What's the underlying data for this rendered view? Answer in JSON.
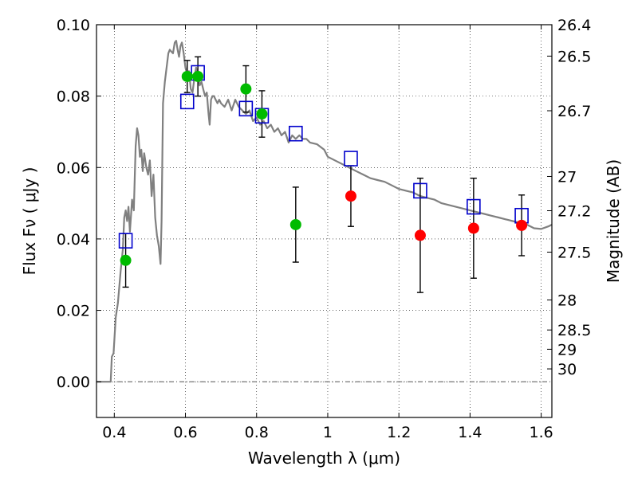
{
  "chart_data": {
    "type": "scatter",
    "xlabel": "Wavelength  λ (μm)",
    "ylabel": "Flux  Fν  ( μJy )",
    "ylabel_right": "Magnitude (AB)",
    "xlim": [
      0.35,
      1.63
    ],
    "ylim": [
      -0.01,
      0.1
    ],
    "grid": true,
    "x_ticks": [
      0.4,
      0.6,
      0.8,
      1.0,
      1.2,
      1.4,
      1.6
    ],
    "x_tick_labels": [
      "0.4",
      "0.6",
      "0.8",
      "1",
      "1.2",
      "1.4",
      "1.6"
    ],
    "y_ticks": [
      0.0,
      0.02,
      0.04,
      0.06,
      0.08,
      0.1
    ],
    "y_tick_labels": [
      "0.00",
      "0.02",
      "0.04",
      "0.06",
      "0.08",
      "0.10"
    ],
    "right_ticks": [
      {
        "label": "26.4",
        "flux": 0.1
      },
      {
        "label": "26.5",
        "flux": 0.0912
      },
      {
        "label": "26.7",
        "flux": 0.0759
      },
      {
        "label": "27",
        "flux": 0.0575
      },
      {
        "label": "27.2",
        "flux": 0.0479
      },
      {
        "label": "27.5",
        "flux": 0.0363
      },
      {
        "label": "28",
        "flux": 0.0229
      },
      {
        "label": "28.5",
        "flux": 0.0145
      },
      {
        "label": "29",
        "flux": 0.0091
      },
      {
        "label": "30",
        "flux": 0.0036
      }
    ],
    "series": [
      {
        "type": "line",
        "color": "#808080",
        "points": [
          [
            0.35,
            0.0
          ],
          [
            0.372,
            0.0
          ],
          [
            0.39,
            0.0
          ],
          [
            0.393,
            0.007
          ],
          [
            0.398,
            0.008
          ],
          [
            0.404,
            0.018
          ],
          [
            0.41,
            0.022
          ],
          [
            0.418,
            0.031
          ],
          [
            0.424,
            0.037
          ],
          [
            0.428,
            0.046
          ],
          [
            0.432,
            0.048
          ],
          [
            0.436,
            0.045
          ],
          [
            0.44,
            0.049
          ],
          [
            0.444,
            0.042
          ],
          [
            0.45,
            0.051
          ],
          [
            0.455,
            0.048
          ],
          [
            0.46,
            0.066
          ],
          [
            0.464,
            0.071
          ],
          [
            0.468,
            0.069
          ],
          [
            0.472,
            0.063
          ],
          [
            0.476,
            0.065
          ],
          [
            0.48,
            0.059
          ],
          [
            0.484,
            0.064
          ],
          [
            0.49,
            0.06
          ],
          [
            0.495,
            0.058
          ],
          [
            0.5,
            0.062
          ],
          [
            0.505,
            0.052
          ],
          [
            0.51,
            0.058
          ],
          [
            0.515,
            0.046
          ],
          [
            0.52,
            0.041
          ],
          [
            0.525,
            0.038
          ],
          [
            0.53,
            0.033
          ],
          [
            0.533,
            0.045
          ],
          [
            0.537,
            0.078
          ],
          [
            0.542,
            0.084
          ],
          [
            0.547,
            0.088
          ],
          [
            0.552,
            0.092
          ],
          [
            0.556,
            0.093
          ],
          [
            0.56,
            0.0925
          ],
          [
            0.565,
            0.092
          ],
          [
            0.57,
            0.095
          ],
          [
            0.574,
            0.0955
          ],
          [
            0.578,
            0.093
          ],
          [
            0.582,
            0.091
          ],
          [
            0.586,
            0.094
          ],
          [
            0.59,
            0.095
          ],
          [
            0.595,
            0.092
          ],
          [
            0.6,
            0.088
          ],
          [
            0.605,
            0.086
          ],
          [
            0.61,
            0.087
          ],
          [
            0.615,
            0.082
          ],
          [
            0.62,
            0.081
          ],
          [
            0.625,
            0.085
          ],
          [
            0.63,
            0.088
          ],
          [
            0.635,
            0.086
          ],
          [
            0.64,
            0.083
          ],
          [
            0.645,
            0.084
          ],
          [
            0.65,
            0.082
          ],
          [
            0.655,
            0.08
          ],
          [
            0.66,
            0.081
          ],
          [
            0.665,
            0.075
          ],
          [
            0.668,
            0.072
          ],
          [
            0.672,
            0.079
          ],
          [
            0.676,
            0.08
          ],
          [
            0.68,
            0.08
          ],
          [
            0.685,
            0.079
          ],
          [
            0.69,
            0.078
          ],
          [
            0.695,
            0.079
          ],
          [
            0.7,
            0.078
          ],
          [
            0.71,
            0.077
          ],
          [
            0.72,
            0.079
          ],
          [
            0.73,
            0.076
          ],
          [
            0.74,
            0.079
          ],
          [
            0.75,
            0.077
          ],
          [
            0.76,
            0.076
          ],
          [
            0.77,
            0.075
          ],
          [
            0.78,
            0.076
          ],
          [
            0.79,
            0.073
          ],
          [
            0.8,
            0.074
          ],
          [
            0.81,
            0.072
          ],
          [
            0.82,
            0.073
          ],
          [
            0.83,
            0.071
          ],
          [
            0.84,
            0.072
          ],
          [
            0.85,
            0.07
          ],
          [
            0.86,
            0.071
          ],
          [
            0.87,
            0.069
          ],
          [
            0.88,
            0.07
          ],
          [
            0.89,
            0.067
          ],
          [
            0.9,
            0.069
          ],
          [
            0.91,
            0.068
          ],
          [
            0.92,
            0.069
          ],
          [
            0.93,
            0.068
          ],
          [
            0.94,
            0.068
          ],
          [
            0.95,
            0.067
          ],
          [
            0.97,
            0.0665
          ],
          [
            0.99,
            0.065
          ],
          [
            1.0,
            0.063
          ],
          [
            1.02,
            0.062
          ],
          [
            1.04,
            0.061
          ],
          [
            1.06,
            0.06
          ],
          [
            1.08,
            0.059
          ],
          [
            1.1,
            0.058
          ],
          [
            1.12,
            0.057
          ],
          [
            1.14,
            0.0565
          ],
          [
            1.16,
            0.056
          ],
          [
            1.18,
            0.055
          ],
          [
            1.2,
            0.054
          ],
          [
            1.22,
            0.0535
          ],
          [
            1.24,
            0.053
          ],
          [
            1.26,
            0.052
          ],
          [
            1.28,
            0.0515
          ],
          [
            1.3,
            0.051
          ],
          [
            1.32,
            0.05
          ],
          [
            1.34,
            0.0495
          ],
          [
            1.36,
            0.049
          ],
          [
            1.38,
            0.0485
          ],
          [
            1.4,
            0.048
          ],
          [
            1.42,
            0.0475
          ],
          [
            1.44,
            0.047
          ],
          [
            1.46,
            0.0465
          ],
          [
            1.48,
            0.046
          ],
          [
            1.5,
            0.0455
          ],
          [
            1.52,
            0.045
          ],
          [
            1.54,
            0.0445
          ],
          [
            1.56,
            0.044
          ],
          [
            1.58,
            0.043
          ],
          [
            1.6,
            0.0428
          ],
          [
            1.62,
            0.0435
          ],
          [
            1.63,
            0.044
          ]
        ]
      },
      {
        "type": "scatter",
        "marker": "square",
        "color": "#0000cc",
        "points": [
          [
            0.432,
            0.0395
          ],
          [
            0.605,
            0.0785
          ],
          [
            0.635,
            0.0865
          ],
          [
            0.77,
            0.0765
          ],
          [
            0.815,
            0.0745
          ],
          [
            0.91,
            0.0695
          ],
          [
            1.065,
            0.0625
          ],
          [
            1.26,
            0.0535
          ],
          [
            1.41,
            0.049
          ],
          [
            1.545,
            0.0465
          ]
        ]
      },
      {
        "type": "scatter",
        "marker": "circle",
        "color": "#00bb00",
        "points": [
          {
            "x": 0.432,
            "y": 0.034,
            "err": 0.0075
          },
          {
            "x": 0.605,
            "y": 0.0855,
            "err": 0.0045
          },
          {
            "x": 0.635,
            "y": 0.0855,
            "err": 0.0055
          },
          {
            "x": 0.77,
            "y": 0.082,
            "err": 0.0065
          },
          {
            "x": 0.815,
            "y": 0.075,
            "err": 0.0065
          },
          {
            "x": 0.91,
            "y": 0.044,
            "err": 0.0105
          }
        ]
      },
      {
        "type": "scatter",
        "marker": "circle",
        "color": "#ff0000",
        "points": [
          {
            "x": 1.065,
            "y": 0.052,
            "err": 0.0085
          },
          {
            "x": 1.26,
            "y": 0.041,
            "err": 0.016
          },
          {
            "x": 1.41,
            "y": 0.043,
            "err": 0.014
          },
          {
            "x": 1.545,
            "y": 0.0438,
            "err": 0.0085
          }
        ]
      }
    ]
  }
}
